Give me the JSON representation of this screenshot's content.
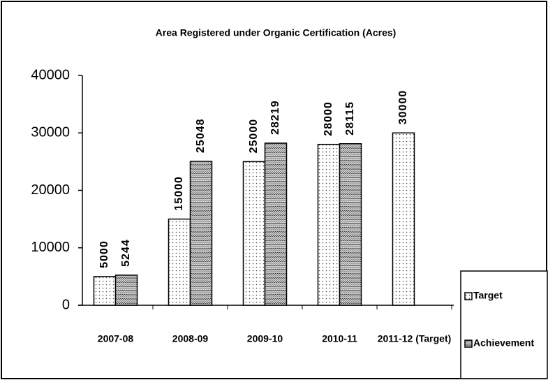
{
  "chart_data": {
    "type": "bar",
    "title": "Area Registered under Organic Certification (Acres)",
    "categories": [
      "2007-08",
      "2008-09",
      "2009-10",
      "2010-11",
      "2011-12 (Target)"
    ],
    "series": [
      {
        "name": "Target",
        "color": "#ffffff",
        "values": [
          5000,
          15000,
          25000,
          28000,
          30000
        ]
      },
      {
        "name": "Achievement",
        "color": "#cccccc",
        "values": [
          5244,
          25048,
          28219,
          28115,
          null
        ]
      }
    ],
    "ylim": [
      0,
      40000
    ],
    "yticks": [
      0,
      10000,
      20000,
      30000,
      40000
    ],
    "grid": false,
    "legend": "right"
  }
}
